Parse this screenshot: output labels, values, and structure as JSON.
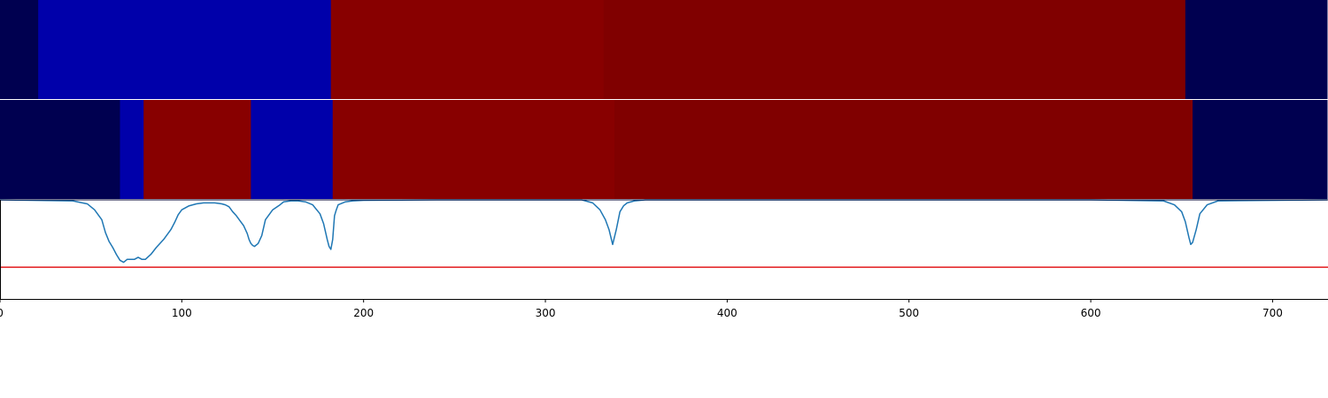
{
  "chart_data": {
    "type": "heatmap",
    "xlim": [
      0,
      730
    ],
    "x_ticks": [
      0,
      100,
      200,
      300,
      400,
      500,
      600,
      700
    ],
    "colors": {
      "navy": "#000050",
      "blue": "#0000aa",
      "red": "#880000",
      "dark_red": "#800000",
      "curve": "#1f77b4",
      "threshold": "#e31a1c",
      "background": "#ffffff",
      "axis": "#000000"
    },
    "tracks": [
      {
        "segments": [
          {
            "start": 0,
            "end": 21,
            "color": "navy"
          },
          {
            "start": 21,
            "end": 182,
            "color": "blue"
          },
          {
            "start": 182,
            "end": 332,
            "color": "red"
          },
          {
            "start": 332,
            "end": 652,
            "color": "dark_red"
          },
          {
            "start": 652,
            "end": 730,
            "color": "navy"
          }
        ]
      },
      {
        "segments": [
          {
            "start": 0,
            "end": 66,
            "color": "navy"
          },
          {
            "start": 66,
            "end": 79,
            "color": "blue"
          },
          {
            "start": 79,
            "end": 138,
            "color": "red"
          },
          {
            "start": 138,
            "end": 183,
            "color": "blue"
          },
          {
            "start": 183,
            "end": 338,
            "color": "red"
          },
          {
            "start": 338,
            "end": 656,
            "color": "dark_red"
          },
          {
            "start": 656,
            "end": 730,
            "color": "navy"
          }
        ]
      }
    ],
    "line_panel": {
      "ylim": [
        0,
        1
      ],
      "threshold": 0.32,
      "series": [
        {
          "x": [
            0,
            40,
            48,
            52,
            56,
            58,
            60,
            62,
            64,
            66,
            68,
            70,
            72,
            74,
            76,
            78,
            80,
            83,
            86,
            90,
            94,
            96,
            98,
            100,
            104,
            108,
            112,
            116,
            118,
            120,
            122,
            124,
            126,
            128,
            130,
            132,
            134,
            136,
            137,
            138,
            139,
            140,
            142,
            144,
            146,
            150,
            154,
            156,
            160,
            164,
            168,
            172,
            176,
            178,
            180,
            181,
            182,
            183,
            184,
            185,
            186,
            190,
            194,
            200,
            240,
            320,
            326,
            330,
            333,
            335,
            337,
            339,
            341,
            343,
            345,
            349,
            355,
            400,
            600,
            640,
            646,
            650,
            652,
            654,
            655,
            656,
            658,
            660,
            664,
            670,
            730
          ],
          "y": [
            1.0,
            0.99,
            0.96,
            0.9,
            0.8,
            0.67,
            0.58,
            0.52,
            0.45,
            0.39,
            0.37,
            0.4,
            0.4,
            0.4,
            0.42,
            0.4,
            0.4,
            0.45,
            0.52,
            0.6,
            0.7,
            0.77,
            0.85,
            0.9,
            0.94,
            0.96,
            0.97,
            0.97,
            0.97,
            0.965,
            0.96,
            0.95,
            0.93,
            0.88,
            0.84,
            0.79,
            0.74,
            0.66,
            0.6,
            0.56,
            0.54,
            0.53,
            0.56,
            0.64,
            0.8,
            0.9,
            0.95,
            0.98,
            0.99,
            0.99,
            0.98,
            0.95,
            0.86,
            0.76,
            0.6,
            0.53,
            0.5,
            0.6,
            0.84,
            0.9,
            0.95,
            0.98,
            0.99,
            0.995,
            1.0,
            1.0,
            0.97,
            0.9,
            0.8,
            0.7,
            0.55,
            0.7,
            0.88,
            0.94,
            0.97,
            0.99,
            1.0,
            1.0,
            1.0,
            0.99,
            0.95,
            0.88,
            0.78,
            0.62,
            0.55,
            0.57,
            0.7,
            0.86,
            0.95,
            0.99,
            1.0
          ]
        }
      ]
    }
  }
}
